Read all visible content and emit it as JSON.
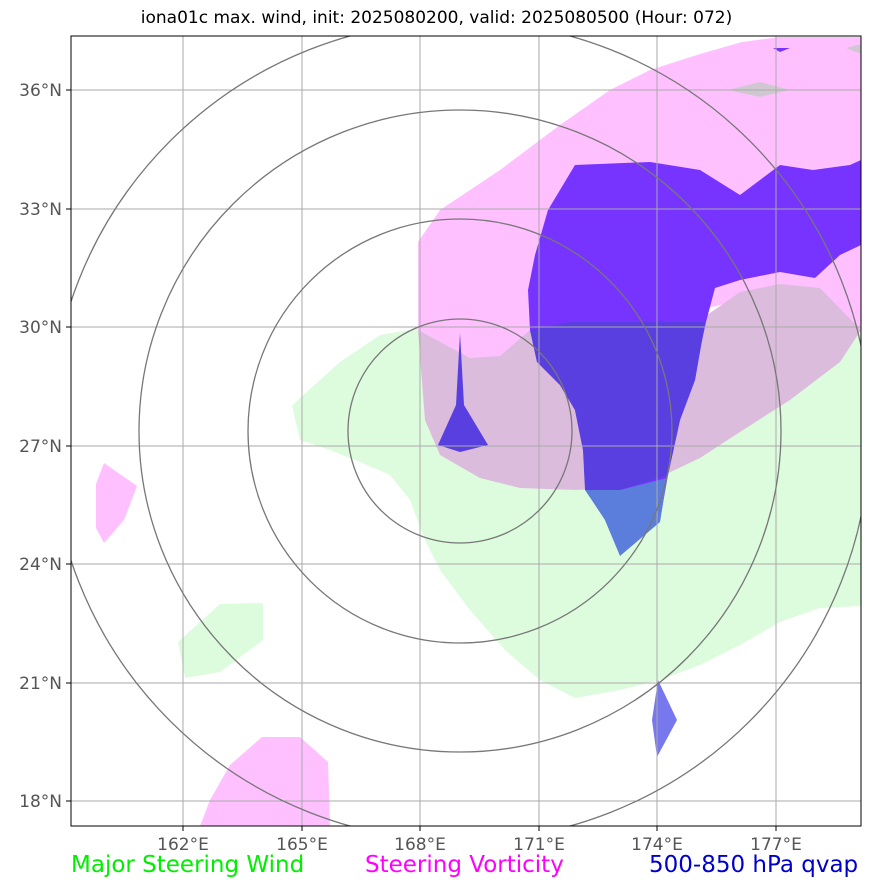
{
  "title": "iona01c max. wind, init: 2025080200, valid: 2025080500 (Hour: 072)",
  "map": {
    "lat_ticks": [
      {
        "value": 36,
        "label": "36°N"
      },
      {
        "value": 33,
        "label": "33°N"
      },
      {
        "value": 30,
        "label": "30°N"
      },
      {
        "value": 27,
        "label": "27°N"
      },
      {
        "value": 24,
        "label": "24°N"
      },
      {
        "value": 21,
        "label": "21°N"
      },
      {
        "value": 18,
        "label": "18°N"
      }
    ],
    "lon_ticks": [
      {
        "value": 162,
        "label": "162°E"
      },
      {
        "value": 165,
        "label": "165°E"
      },
      {
        "value": 168,
        "label": "168°E"
      },
      {
        "value": 171,
        "label": "171°E"
      },
      {
        "value": 174,
        "label": "174°E"
      },
      {
        "value": 177,
        "label": "177°E"
      }
    ]
  },
  "legend": {
    "wind": {
      "label": "Major Steering Wind",
      "color": "#00ff00"
    },
    "vorticity": {
      "label": "Steering Vorticity",
      "color": "#ff00ff"
    },
    "qvap": {
      "label": "500-850 hPa qvap",
      "color": "#0000cc"
    }
  },
  "colors": {
    "wind_fill": "#ddfcdd",
    "vorticity_fill": "#ffc0ff",
    "overlap_fill": "#dcbcdc",
    "qvap_fill": "#7733ff",
    "qvap_dark": "#5a3fe0",
    "qvap_blue": "#5b7ddc"
  }
}
